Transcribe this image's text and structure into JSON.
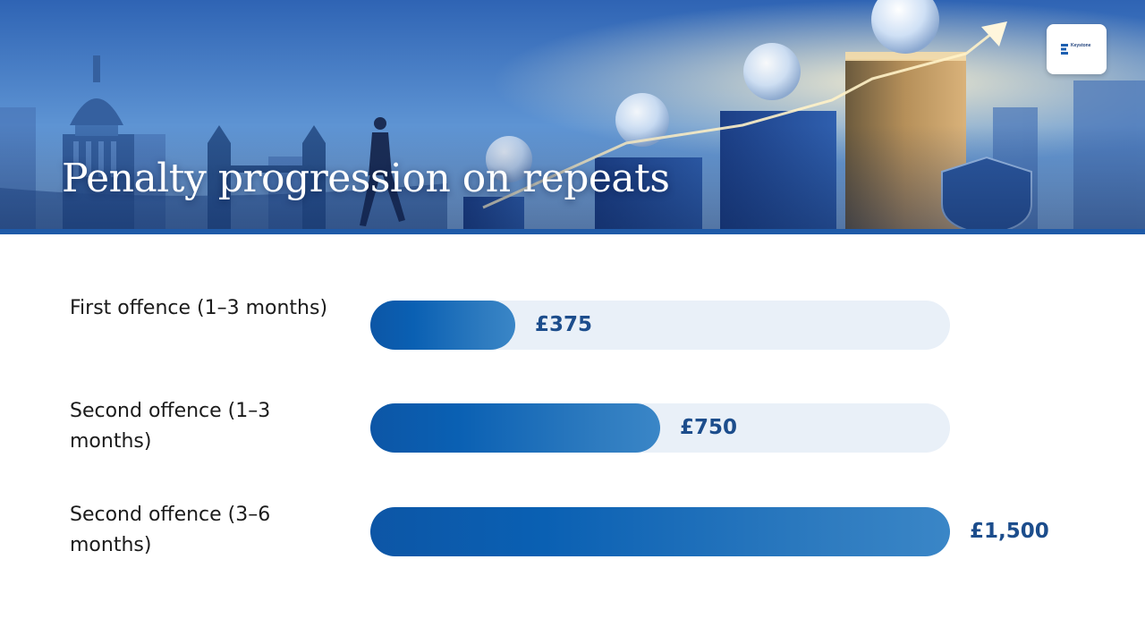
{
  "header": {
    "title": "Penalty progression on repeats",
    "logo_text": "Keystone"
  },
  "colors": {
    "accent": "#1f5aa8",
    "bar_fill": "#0d56a6",
    "bar_track": "#e9f0f8",
    "value_text": "#1c4d8c"
  },
  "chart_data": {
    "type": "bar",
    "orientation": "horizontal",
    "title": "Penalty progression on repeats",
    "categories": [
      "First offence (1–3 months)",
      "Second offence (1–3 months)",
      "Second offence (3–6 months)"
    ],
    "values": [
      375,
      750,
      1500
    ],
    "value_labels": [
      "£375",
      "£750",
      "£1,500"
    ],
    "unit": "£",
    "xlim": [
      0,
      1500
    ],
    "xlabel": "",
    "ylabel": "",
    "grid": false,
    "legend": "none"
  }
}
